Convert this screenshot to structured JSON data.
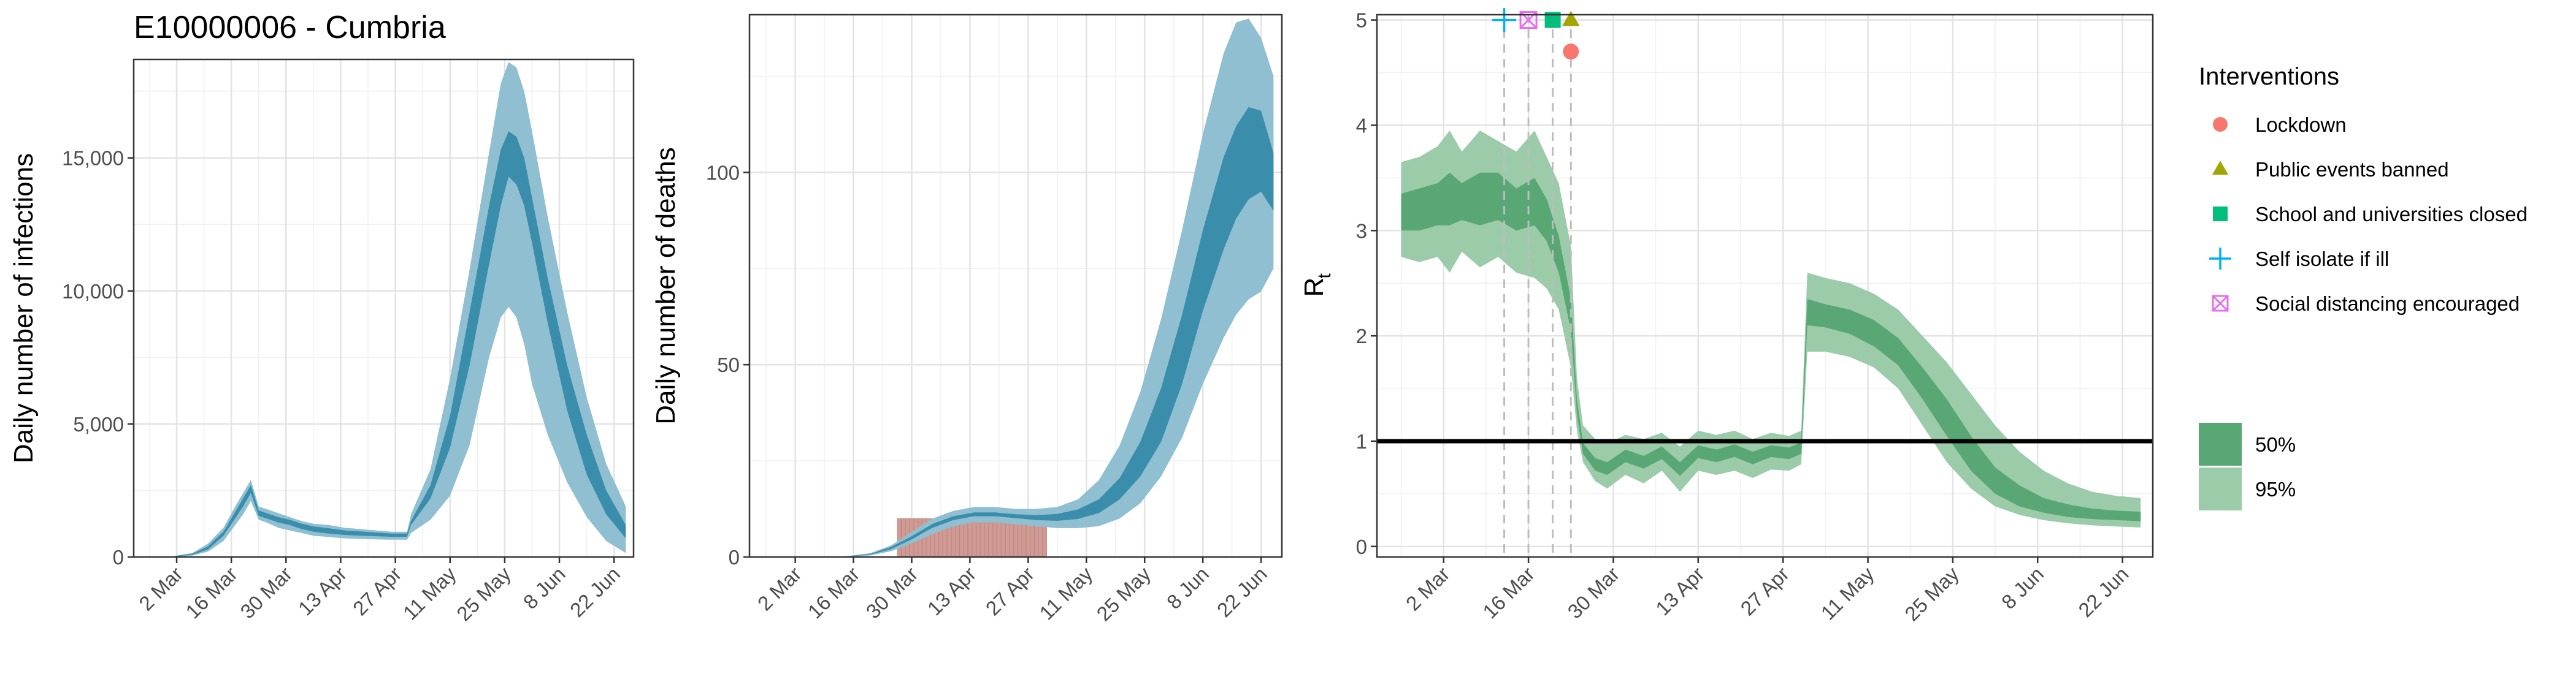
{
  "chart_data": [
    {
      "type": "area",
      "title": "E10000006 - Cumbria",
      "xlabel": "",
      "ylabel": "Daily number of infections",
      "xlim": [
        "2020-02-20",
        "2020-06-27"
      ],
      "ylim": [
        0,
        18700
      ],
      "yticks": [
        0,
        5000,
        10000,
        15000
      ],
      "ytick_labels": [
        "0",
        "5,000",
        "10,000",
        "15,000"
      ],
      "xtick_labels": [
        "2 Mar",
        "16 Mar",
        "30 Mar",
        "13 Apr",
        "27 Apr",
        "11 May",
        "25 May",
        "8 Jun",
        "22 Jun"
      ],
      "xtick_dates": [
        "2020-03-02",
        "2020-03-16",
        "2020-03-30",
        "2020-04-13",
        "2020-04-27",
        "2020-05-11",
        "2020-05-25",
        "2020-06-08",
        "2020-06-22"
      ],
      "grid": true,
      "colors": {
        "band95": "#8fbfd1",
        "band50": "#3a8eab"
      },
      "x": [
        "2020-02-24",
        "2020-03-01",
        "2020-03-06",
        "2020-03-10",
        "2020-03-14",
        "2020-03-17",
        "2020-03-19",
        "2020-03-21",
        "2020-03-23",
        "2020-03-25",
        "2020-03-28",
        "2020-03-31",
        "2020-04-03",
        "2020-04-06",
        "2020-04-10",
        "2020-04-14",
        "2020-04-18",
        "2020-04-22",
        "2020-04-26",
        "2020-04-30",
        "2020-05-01",
        "2020-05-06",
        "2020-05-11",
        "2020-05-16",
        "2020-05-21",
        "2020-05-24",
        "2020-05-26",
        "2020-05-28",
        "2020-05-30",
        "2020-06-01",
        "2020-06-05",
        "2020-06-10",
        "2020-06-15",
        "2020-06-20",
        "2020-06-25"
      ],
      "series": [
        {
          "role": "95%",
          "lower": [
            0,
            10,
            50,
            200,
            600,
            1200,
            1600,
            2100,
            1400,
            1300,
            1100,
            1000,
            900,
            800,
            750,
            700,
            680,
            660,
            650,
            650,
            900,
            1400,
            2300,
            4200,
            7500,
            9000,
            9400,
            9000,
            8000,
            6500,
            4600,
            2800,
            1500,
            600,
            150
          ],
          "upper": [
            0,
            30,
            150,
            500,
            1100,
            1900,
            2400,
            2900,
            1900,
            1800,
            1650,
            1500,
            1350,
            1250,
            1200,
            1100,
            1050,
            1000,
            950,
            950,
            1600,
            3300,
            6700,
            10800,
            15200,
            17800,
            18600,
            18400,
            17500,
            16000,
            12800,
            9200,
            6000,
            3500,
            1900
          ]
        },
        {
          "role": "50%",
          "lower": [
            0,
            15,
            80,
            280,
            800,
            1450,
            1900,
            2400,
            1550,
            1450,
            1300,
            1200,
            1050,
            950,
            880,
            830,
            800,
            780,
            760,
            760,
            1200,
            2200,
            4100,
            7200,
            11000,
            13200,
            14300,
            14000,
            13200,
            11800,
            8800,
            5500,
            3100,
            1600,
            700
          ],
          "upper": [
            0,
            25,
            120,
            400,
            950,
            1700,
            2200,
            2700,
            1750,
            1650,
            1500,
            1400,
            1250,
            1150,
            1080,
            1000,
            960,
            920,
            880,
            880,
            1350,
            2700,
            5300,
            9200,
            13200,
            15300,
            16000,
            15800,
            15000,
            13500,
            10500,
            7200,
            4600,
            2500,
            1200
          ]
        }
      ]
    },
    {
      "type": "area",
      "title": "",
      "xlabel": "",
      "ylabel": "Daily number of deaths",
      "xlim": [
        "2020-02-20",
        "2020-06-27"
      ],
      "ylim": [
        0,
        141
      ],
      "yticks": [
        0,
        50,
        100
      ],
      "ytick_labels": [
        "0",
        "50",
        "100"
      ],
      "xtick_labels": [
        "2 Mar",
        "16 Mar",
        "30 Mar",
        "13 Apr",
        "27 Apr",
        "11 May",
        "25 May",
        "8 Jun",
        "22 Jun"
      ],
      "xtick_dates": [
        "2020-03-02",
        "2020-03-16",
        "2020-03-30",
        "2020-04-13",
        "2020-04-27",
        "2020-05-11",
        "2020-05-25",
        "2020-06-08",
        "2020-06-22"
      ],
      "grid": true,
      "colors": {
        "band95": "#8fbfd1",
        "band50": "#3a8eab",
        "bars": "#d09b95"
      },
      "x": [
        "2020-03-01",
        "2020-03-10",
        "2020-03-15",
        "2020-03-20",
        "2020-03-25",
        "2020-03-30",
        "2020-04-04",
        "2020-04-09",
        "2020-04-14",
        "2020-04-19",
        "2020-04-24",
        "2020-04-29",
        "2020-05-04",
        "2020-05-09",
        "2020-05-14",
        "2020-05-19",
        "2020-05-24",
        "2020-05-29",
        "2020-06-03",
        "2020-06-08",
        "2020-06-13",
        "2020-06-16",
        "2020-06-19",
        "2020-06-22",
        "2020-06-25"
      ],
      "series": [
        {
          "role": "95%",
          "lower": [
            0,
            0,
            0.1,
            0.4,
            1.5,
            3.5,
            6,
            8,
            9,
            9,
            8.5,
            8,
            7.5,
            7.5,
            8,
            10,
            14,
            21,
            31,
            45,
            57,
            63,
            67,
            69,
            75
          ],
          "upper": [
            0,
            0,
            0.3,
            1,
            3,
            6.5,
            10,
            12,
            13,
            13,
            12.5,
            12.5,
            13,
            15,
            20,
            29,
            43,
            62,
            85,
            110,
            131,
            139,
            140,
            135,
            125
          ]
        },
        {
          "role": "50%",
          "lower": [
            0,
            0,
            0.15,
            0.6,
            2,
            4.6,
            7.6,
            9.6,
            10.6,
            10.6,
            10.1,
            9.6,
            9.4,
            9.9,
            11.4,
            15,
            21,
            30,
            45,
            64,
            80,
            88,
            93,
            95,
            90
          ],
          "upper": [
            0,
            0,
            0.25,
            0.8,
            2.6,
            5.4,
            8.6,
            10.6,
            11.6,
            11.6,
            11.1,
            10.9,
            11.2,
            12.4,
            15,
            20.5,
            30,
            44,
            63,
            85,
            104,
            112,
            117,
            116,
            105
          ]
        }
      ],
      "bars": {
        "dates": [
          "2020-03-27",
          "2020-03-28",
          "2020-03-29",
          "2020-03-30",
          "2020-03-31",
          "2020-04-01",
          "2020-04-02",
          "2020-04-03",
          "2020-04-04",
          "2020-04-05",
          "2020-04-06",
          "2020-04-07",
          "2020-04-08",
          "2020-04-09",
          "2020-04-10",
          "2020-04-11",
          "2020-04-12",
          "2020-04-13",
          "2020-04-14",
          "2020-04-15",
          "2020-04-16",
          "2020-04-17",
          "2020-04-18",
          "2020-04-19",
          "2020-04-20",
          "2020-04-21",
          "2020-04-22",
          "2020-04-23",
          "2020-04-24",
          "2020-04-25",
          "2020-04-26",
          "2020-04-27",
          "2020-04-28",
          "2020-04-29",
          "2020-04-30",
          "2020-05-01"
        ],
        "values": [
          10,
          10,
          10,
          10,
          10,
          10,
          10,
          10,
          10,
          10,
          10,
          10,
          10,
          10,
          10,
          10,
          10,
          10,
          10,
          10,
          10,
          10,
          10,
          10,
          10,
          10,
          10,
          10,
          10,
          10,
          10,
          10,
          10,
          10,
          10,
          10
        ]
      }
    },
    {
      "type": "area",
      "title": "",
      "xlabel": "",
      "ylabel_main": "R",
      "ylabel_sub": "t",
      "xlim": [
        "2020-02-20",
        "2020-06-27"
      ],
      "ylim": [
        -0.1,
        5.05
      ],
      "yticks": [
        0,
        1,
        2,
        3,
        4,
        5
      ],
      "ytick_labels": [
        "0",
        "1",
        "2",
        "3",
        "4",
        "5"
      ],
      "xtick_labels": [
        "2 Mar",
        "16 Mar",
        "30 Mar",
        "13 Apr",
        "27 Apr",
        "11 May",
        "25 May",
        "8 Jun",
        "22 Jun"
      ],
      "xtick_dates": [
        "2020-03-02",
        "2020-03-16",
        "2020-03-30",
        "2020-04-13",
        "2020-04-27",
        "2020-05-11",
        "2020-05-25",
        "2020-06-08",
        "2020-06-22"
      ],
      "grid": true,
      "reference_line": 1,
      "colors": {
        "band95": "#9ccbaa",
        "band50": "#5aa776",
        "reference": "#000000",
        "vline": "#bdbdbd"
      },
      "x": [
        "2020-02-24",
        "2020-02-27",
        "2020-03-01",
        "2020-03-03",
        "2020-03-05",
        "2020-03-08",
        "2020-03-11",
        "2020-03-14",
        "2020-03-17",
        "2020-03-19",
        "2020-03-21",
        "2020-03-23",
        "2020-03-24",
        "2020-03-25",
        "2020-03-27",
        "2020-03-29",
        "2020-04-01",
        "2020-04-04",
        "2020-04-07",
        "2020-04-10",
        "2020-04-13",
        "2020-04-16",
        "2020-04-19",
        "2020-04-22",
        "2020-04-25",
        "2020-04-28",
        "2020-04-30",
        "2020-05-01",
        "2020-05-04",
        "2020-05-08",
        "2020-05-12",
        "2020-05-16",
        "2020-05-20",
        "2020-05-24",
        "2020-05-28",
        "2020-06-01",
        "2020-06-05",
        "2020-06-09",
        "2020-06-13",
        "2020-06-17",
        "2020-06-21",
        "2020-06-25"
      ],
      "series": [
        {
          "role": "95%",
          "lower": [
            2.75,
            2.7,
            2.75,
            2.6,
            2.8,
            2.65,
            2.75,
            2.6,
            2.55,
            2.45,
            2.25,
            1.7,
            1.1,
            0.8,
            0.62,
            0.55,
            0.68,
            0.6,
            0.72,
            0.52,
            0.72,
            0.68,
            0.72,
            0.65,
            0.73,
            0.72,
            0.78,
            1.85,
            1.85,
            1.8,
            1.7,
            1.5,
            1.15,
            0.8,
            0.55,
            0.38,
            0.3,
            0.25,
            0.22,
            0.2,
            0.19,
            0.18
          ],
          "upper": [
            3.65,
            3.7,
            3.8,
            3.95,
            3.75,
            3.95,
            3.85,
            3.75,
            3.95,
            3.7,
            3.45,
            2.85,
            1.6,
            1.15,
            1.02,
            0.98,
            1.06,
            1.02,
            1.08,
            0.95,
            1.1,
            1.06,
            1.1,
            1.02,
            1.08,
            1.05,
            1.1,
            2.6,
            2.55,
            2.5,
            2.4,
            2.25,
            2.0,
            1.75,
            1.45,
            1.15,
            0.9,
            0.72,
            0.6,
            0.52,
            0.48,
            0.46
          ]
        },
        {
          "role": "50%",
          "lower": [
            3.0,
            3.0,
            3.05,
            3.05,
            3.1,
            3.05,
            3.1,
            3.0,
            3.05,
            2.9,
            2.6,
            2.05,
            1.25,
            0.88,
            0.72,
            0.68,
            0.8,
            0.74,
            0.83,
            0.67,
            0.84,
            0.8,
            0.85,
            0.78,
            0.85,
            0.83,
            0.88,
            2.1,
            2.08,
            2.02,
            1.9,
            1.72,
            1.4,
            1.05,
            0.72,
            0.5,
            0.38,
            0.32,
            0.28,
            0.26,
            0.25,
            0.24
          ],
          "upper": [
            3.35,
            3.4,
            3.45,
            3.55,
            3.45,
            3.55,
            3.55,
            3.4,
            3.5,
            3.3,
            2.95,
            2.35,
            1.4,
            0.98,
            0.84,
            0.8,
            0.92,
            0.86,
            0.95,
            0.8,
            0.96,
            0.92,
            0.97,
            0.9,
            0.96,
            0.94,
            0.99,
            2.35,
            2.3,
            2.25,
            2.15,
            1.98,
            1.7,
            1.4,
            1.05,
            0.75,
            0.58,
            0.46,
            0.4,
            0.36,
            0.34,
            0.33
          ]
        }
      ],
      "interventions": [
        {
          "label": "Lockdown",
          "date": "2020-03-23",
          "y": 4.7,
          "shape": "circle",
          "color": "#f8766d"
        },
        {
          "label": "Public events banned",
          "date": "2020-03-23",
          "y": 5.0,
          "shape": "triangle",
          "color": "#a3a500"
        },
        {
          "label": "School and universities closed",
          "date": "2020-03-20",
          "y": 5.0,
          "shape": "square",
          "color": "#00bf7d"
        },
        {
          "label": "Self isolate if ill",
          "date": "2020-03-12",
          "y": 5.0,
          "shape": "plus",
          "color": "#00b0f6"
        },
        {
          "label": "Social distancing encouraged",
          "date": "2020-03-16",
          "y": 5.0,
          "shape": "boxx",
          "color": "#e76bf3"
        }
      ]
    }
  ],
  "legend": {
    "interventions_title": "Interventions",
    "interventions": [
      {
        "label": "Lockdown",
        "shape": "circle",
        "color": "#f8766d"
      },
      {
        "label": "Public events banned",
        "shape": "triangle",
        "color": "#a3a500"
      },
      {
        "label": "School and universities closed",
        "shape": "square",
        "color": "#00bf7d"
      },
      {
        "label": "Self isolate if ill",
        "shape": "plus",
        "color": "#00b0f6"
      },
      {
        "label": "Social distancing encouraged",
        "shape": "boxx",
        "color": "#e76bf3"
      }
    ],
    "bands": [
      {
        "label": "50%",
        "color": "#5aa776"
      },
      {
        "label": "95%",
        "color": "#9ccbaa"
      }
    ]
  }
}
